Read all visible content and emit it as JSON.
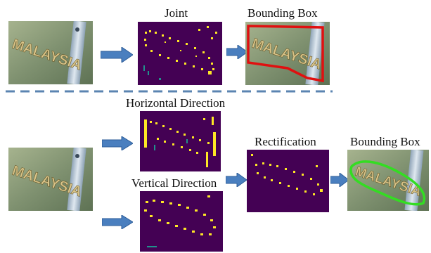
{
  "labels": {
    "joint": "Joint",
    "bounding_box_top": "Bounding Box",
    "horizontal": "Horizontal Direction",
    "vertical": "Vertical Direction",
    "rectification": "Rectification",
    "bounding_box_bottom": "Bounding Box"
  },
  "photo_text": "MALAYSIA",
  "colors": {
    "heatmap_bg": "#440154",
    "heatmap_dot": "#fde725",
    "heatmap_teal": "#21918c",
    "box_red": "#e01010",
    "box_green": "#33dd22",
    "arrow_blue": "#4a7fbf",
    "divider": "#5b84b1"
  }
}
